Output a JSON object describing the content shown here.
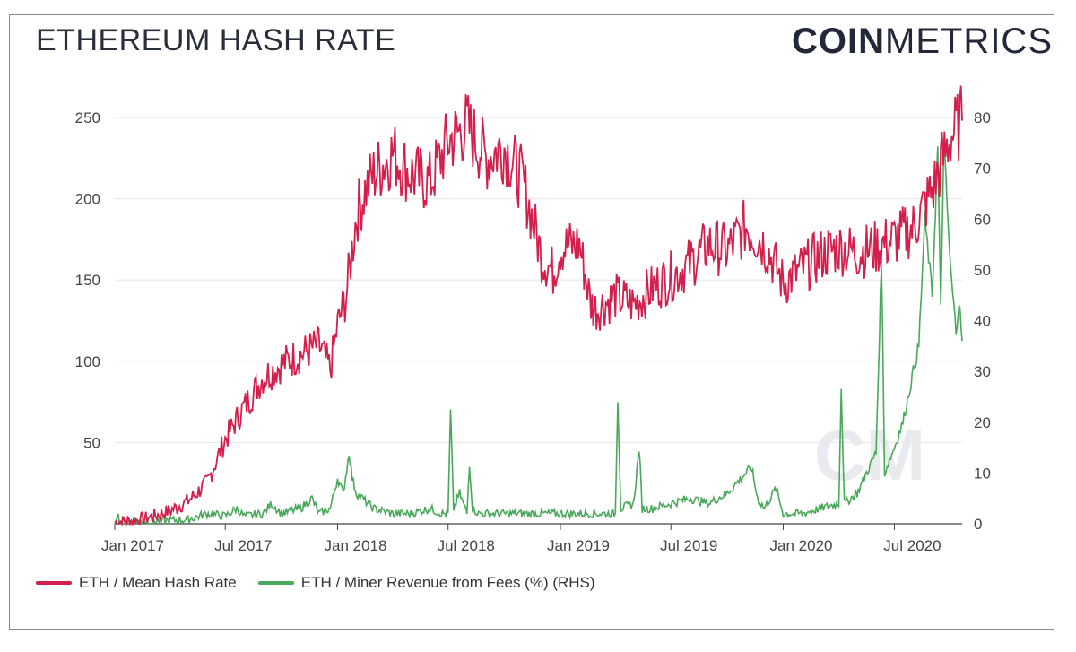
{
  "header": {
    "title": "ETHEREUM HASH RATE",
    "brand_bold": "COIN",
    "brand_light": "METRICS"
  },
  "watermark": "CM",
  "colors": {
    "hash": "#d41f4c",
    "fees": "#4aa85a",
    "grid": "#e6e6e6",
    "axis": "#333333"
  },
  "chart_data": {
    "type": "line",
    "title": "ETHEREUM HASH RATE",
    "x_ticks": [
      "Jan 2017",
      "Jul 2017",
      "Jan 2018",
      "Jul 2018",
      "Jan 2019",
      "Jul 2019",
      "Jan 2020",
      "Jul 2020"
    ],
    "x_range": [
      "2017-01-01",
      "2020-10-20"
    ],
    "y_left": {
      "ticks": [
        "250",
        "200",
        "150",
        "100",
        "50"
      ],
      "range": [
        0,
        250
      ]
    },
    "y_right": {
      "ticks": [
        "80",
        "70",
        "60",
        "50",
        "40",
        "30",
        "20",
        "10",
        "0"
      ],
      "range": [
        0,
        80
      ]
    },
    "grid": true,
    "legend_position": "bottom-left",
    "series": [
      {
        "name": "ETH / Mean Hash Rate",
        "axis": "left",
        "points": [
          [
            "2017-01-01",
            1
          ],
          [
            "2017-02-01",
            2
          ],
          [
            "2017-03-01",
            4
          ],
          [
            "2017-04-01",
            8
          ],
          [
            "2017-05-01",
            14
          ],
          [
            "2017-06-01",
            25
          ],
          [
            "2017-07-01",
            52
          ],
          [
            "2017-08-01",
            72
          ],
          [
            "2017-09-01",
            90
          ],
          [
            "2017-10-01",
            98
          ],
          [
            "2017-11-01",
            104
          ],
          [
            "2017-12-01",
            110
          ],
          [
            "2017-12-20",
            95
          ],
          [
            "2018-01-01",
            122
          ],
          [
            "2018-01-15",
            140
          ],
          [
            "2018-02-01",
            190
          ],
          [
            "2018-02-15",
            205
          ],
          [
            "2018-03-01",
            215
          ],
          [
            "2018-04-01",
            228
          ],
          [
            "2018-05-01",
            215
          ],
          [
            "2018-06-01",
            210
          ],
          [
            "2018-07-01",
            235
          ],
          [
            "2018-08-01",
            245
          ],
          [
            "2018-09-01",
            225
          ],
          [
            "2018-10-01",
            232
          ],
          [
            "2018-11-01",
            210
          ],
          [
            "2018-12-01",
            165
          ],
          [
            "2018-12-20",
            155
          ],
          [
            "2019-01-01",
            170
          ],
          [
            "2019-02-01",
            172
          ],
          [
            "2019-02-20",
            135
          ],
          [
            "2019-03-01",
            132
          ],
          [
            "2019-04-01",
            140
          ],
          [
            "2019-05-01",
            135
          ],
          [
            "2019-06-01",
            145
          ],
          [
            "2019-07-01",
            152
          ],
          [
            "2019-08-01",
            160
          ],
          [
            "2019-09-01",
            172
          ],
          [
            "2019-10-01",
            168
          ],
          [
            "2019-11-01",
            183
          ],
          [
            "2019-12-01",
            172
          ],
          [
            "2019-12-20",
            158
          ],
          [
            "2020-01-01",
            148
          ],
          [
            "2020-02-01",
            157
          ],
          [
            "2020-03-01",
            165
          ],
          [
            "2020-04-01",
            170
          ],
          [
            "2020-05-01",
            167
          ],
          [
            "2020-06-01",
            170
          ],
          [
            "2020-07-01",
            175
          ],
          [
            "2020-08-01",
            182
          ],
          [
            "2020-09-01",
            205
          ],
          [
            "2020-10-01",
            238
          ],
          [
            "2020-10-20",
            248
          ]
        ]
      },
      {
        "name": "ETH / Miner Revenue from Fees (%) (RHS)",
        "axis": "right",
        "points": [
          [
            "2017-01-01",
            0.5
          ],
          [
            "2017-01-05",
            2
          ],
          [
            "2017-01-10",
            0.5
          ],
          [
            "2017-03-01",
            0.5
          ],
          [
            "2017-05-01",
            0.8
          ],
          [
            "2017-06-01",
            2
          ],
          [
            "2017-07-01",
            1.5
          ],
          [
            "2017-07-20",
            3
          ],
          [
            "2017-08-01",
            1.5
          ],
          [
            "2017-09-01",
            2
          ],
          [
            "2017-09-15",
            4
          ],
          [
            "2017-10-01",
            2
          ],
          [
            "2017-11-01",
            3
          ],
          [
            "2017-11-20",
            5
          ],
          [
            "2017-12-01",
            2
          ],
          [
            "2017-12-20",
            3
          ],
          [
            "2018-01-01",
            9
          ],
          [
            "2018-01-10",
            6
          ],
          [
            "2018-01-20",
            14
          ],
          [
            "2018-01-25",
            9
          ],
          [
            "2018-02-01",
            6
          ],
          [
            "2018-03-01",
            3
          ],
          [
            "2018-04-01",
            2
          ],
          [
            "2018-05-01",
            2
          ],
          [
            "2018-06-01",
            3
          ],
          [
            "2018-06-20",
            2
          ],
          [
            "2018-07-01",
            2
          ],
          [
            "2018-07-05",
            22
          ],
          [
            "2018-07-10",
            3
          ],
          [
            "2018-07-20",
            6
          ],
          [
            "2018-08-01",
            2
          ],
          [
            "2018-08-05",
            12
          ],
          [
            "2018-08-10",
            3
          ],
          [
            "2018-08-20",
            2
          ],
          [
            "2018-09-01",
            2
          ],
          [
            "2018-10-01",
            2
          ],
          [
            "2018-11-01",
            2
          ],
          [
            "2018-12-01",
            2
          ],
          [
            "2019-01-01",
            2
          ],
          [
            "2019-02-01",
            2
          ],
          [
            "2019-03-01",
            2
          ],
          [
            "2019-04-01",
            2
          ],
          [
            "2019-04-05",
            25
          ],
          [
            "2019-04-10",
            3
          ],
          [
            "2019-05-01",
            4
          ],
          [
            "2019-05-10",
            15
          ],
          [
            "2019-05-15",
            3
          ],
          [
            "2019-06-01",
            3
          ],
          [
            "2019-07-01",
            4
          ],
          [
            "2019-08-01",
            5
          ],
          [
            "2019-09-01",
            4
          ],
          [
            "2019-10-01",
            6
          ],
          [
            "2019-11-01",
            10
          ],
          [
            "2019-11-10",
            11
          ],
          [
            "2019-11-20",
            5
          ],
          [
            "2019-12-01",
            3
          ],
          [
            "2019-12-20",
            7
          ],
          [
            "2020-01-01",
            2
          ],
          [
            "2020-02-01",
            2
          ],
          [
            "2020-03-01",
            3
          ],
          [
            "2020-04-01",
            4
          ],
          [
            "2020-04-05",
            27
          ],
          [
            "2020-04-10",
            4
          ],
          [
            "2020-05-01",
            6
          ],
          [
            "2020-06-01",
            14
          ],
          [
            "2020-06-10",
            52
          ],
          [
            "2020-06-15",
            10
          ],
          [
            "2020-07-01",
            15
          ],
          [
            "2020-07-15",
            20
          ],
          [
            "2020-08-01",
            30
          ],
          [
            "2020-08-10",
            35
          ],
          [
            "2020-08-20",
            60
          ],
          [
            "2020-09-01",
            45
          ],
          [
            "2020-09-10",
            74
          ],
          [
            "2020-09-15",
            42
          ],
          [
            "2020-09-20",
            75
          ],
          [
            "2020-10-01",
            50
          ],
          [
            "2020-10-10",
            38
          ],
          [
            "2020-10-15",
            44
          ],
          [
            "2020-10-20",
            36
          ]
        ]
      }
    ]
  }
}
